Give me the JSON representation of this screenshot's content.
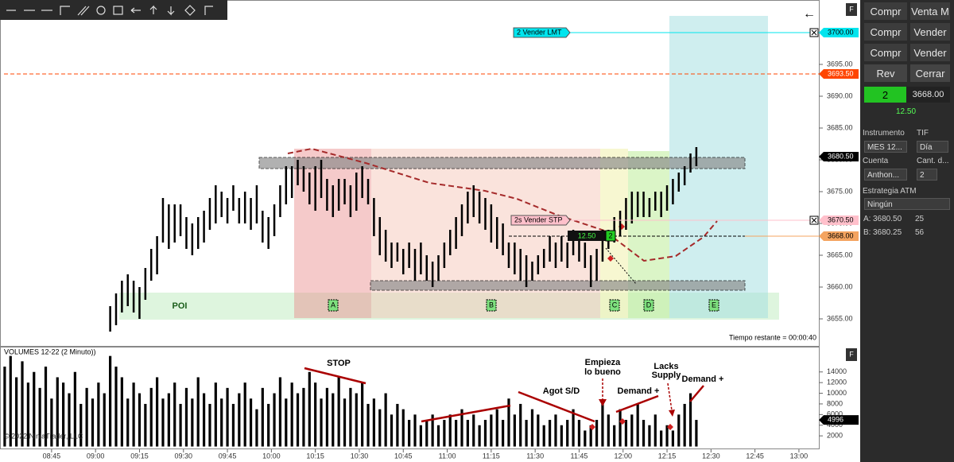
{
  "chart_data": [
    {
      "type": "ohlc",
      "color": "#000000",
      "xlim": [
        507.4,
        786.8
      ],
      "ylim": [
        3650.75,
        3705.125
      ],
      "yticks": [
        {
          "value": 3655,
          "label": "3655.00"
        },
        {
          "value": 3660,
          "label": "3660.00"
        },
        {
          "value": 3665,
          "label": "3665.00"
        },
        {
          "value": 3670,
          "label": "3670.00"
        },
        {
          "value": 3675,
          "label": "3675.00"
        },
        {
          "value": 3680,
          "label": "3680.00"
        },
        {
          "value": 3685,
          "label": "3685.00"
        },
        {
          "value": 3690,
          "label": "3690.00"
        },
        {
          "value": 3695,
          "label": "3695.00"
        }
      ],
      "x": [
        545,
        547,
        549,
        551,
        553,
        555,
        557,
        559,
        561,
        563,
        565,
        567,
        569,
        571,
        573,
        575,
        577,
        579,
        581,
        583,
        585,
        587,
        589,
        591,
        593,
        595,
        597,
        599,
        601,
        603,
        605,
        607,
        609,
        611,
        613,
        615,
        617,
        619,
        621,
        623,
        625,
        627,
        629,
        631,
        633,
        635,
        637,
        639,
        641,
        643,
        645,
        647,
        649,
        651,
        653,
        655,
        657,
        659,
        661,
        663,
        665,
        667,
        669,
        671,
        673,
        675,
        677,
        679,
        681,
        683,
        685,
        687,
        689,
        691,
        693,
        695,
        697,
        699,
        701,
        703,
        705,
        707,
        709,
        711,
        713,
        715,
        717,
        719,
        721,
        723,
        725,
        727,
        729,
        731,
        733,
        735,
        737,
        739,
        741,
        743,
        745
      ],
      "high": [
        3657,
        3659,
        3661,
        3662,
        3661,
        3660,
        3663,
        3666,
        3668,
        3674,
        3673,
        3673,
        3673,
        3671,
        3670,
        3671,
        3672,
        3674,
        3676,
        3675,
        3674,
        3676,
        3674,
        3675,
        3674,
        3676,
        3672,
        3671,
        3673,
        3676,
        3679,
        3679,
        3680,
        3679,
        3678,
        3679,
        3680,
        3677,
        3676,
        3677,
        3677,
        3676,
        3678,
        3679,
        3677,
        3674,
        3671,
        3669,
        3667,
        3667,
        3666,
        3667,
        3666,
        3667,
        3665,
        3664,
        3665,
        3667,
        3669,
        3671,
        3673,
        3675,
        3676,
        3675,
        3674,
        3673,
        3671,
        3670,
        3667,
        3667,
        3666,
        3665,
        3664,
        3665,
        3666,
        3668,
        3667,
        3668,
        3667,
        3669,
        3668,
        3667,
        3665,
        3666,
        3669,
        3669,
        3671,
        3672,
        3674,
        3675,
        3675,
        3675,
        3674,
        3675,
        3675,
        3676,
        3677,
        3678,
        3679,
        3681,
        3682
      ],
      "low": [
        3653,
        3654,
        3656,
        3657,
        3656,
        3655,
        3658,
        3661,
        3662,
        3667,
        3666,
        3667,
        3668,
        3666,
        3665,
        3666,
        3667,
        3669,
        3670,
        3671,
        3670,
        3672,
        3670,
        3670,
        3669,
        3670,
        3667,
        3666,
        3668,
        3671,
        3673,
        3674,
        3676,
        3675,
        3673,
        3672,
        3674,
        3672,
        3671,
        3672,
        3673,
        3671,
        3672,
        3674,
        3673,
        3668,
        3665,
        3664,
        3663,
        3664,
        3662,
        3663,
        3661,
        3662,
        3661,
        3660,
        3661,
        3663,
        3665,
        3666,
        3668,
        3670,
        3671,
        3670,
        3669,
        3667,
        3666,
        3665,
        3663,
        3662,
        3661,
        3660,
        3661,
        3662,
        3663,
        3664,
        3663,
        3664,
        3663,
        3665,
        3664,
        3663,
        3660,
        3661,
        3664,
        3666,
        3667,
        3668,
        3669,
        3670,
        3671,
        3671,
        3671,
        3672,
        3671,
        3672,
        3673,
        3675,
        3676,
        3678,
        3679
      ],
      "levels": [
        {
          "value": 3700,
          "label": "3700.00",
          "color": "#00e5ee"
        },
        {
          "value": 3693.5,
          "label": "3693.50",
          "color": "#ff4500"
        },
        {
          "value": 3680.5,
          "label": "3680.50",
          "color": "#000000"
        },
        {
          "value": 3670.5,
          "label": "3670.50",
          "color": "#ffc0cb"
        },
        {
          "value": 3668,
          "label": "3668.00",
          "color": "#f4a460"
        }
      ],
      "orders": [
        "2  Vender LMT",
        "2s  Vender STP"
      ],
      "position": [
        "12.50",
        "2"
      ],
      "poi": "POI",
      "zones": [
        "A",
        "B",
        "C",
        "D",
        "E"
      ],
      "timer": "Tiempo restante = 00:00:40"
    },
    {
      "type": "bar",
      "color": "#000000",
      "title": "VOLUMES 12-22 (2 Minuto))",
      "xlim": [
        507.4,
        786.8
      ],
      "ylim": [
        -518,
        18741
      ],
      "yticks": [
        2000,
        4000,
        6000,
        8000,
        10000,
        12000,
        14000
      ],
      "xticks": [
        {
          "value": 525,
          "label": "08:45"
        },
        {
          "value": 540,
          "label": "09:00"
        },
        {
          "value": 555,
          "label": "09:15"
        },
        {
          "value": 570,
          "label": "09:30"
        },
        {
          "value": 585,
          "label": "09:45"
        },
        {
          "value": 600,
          "label": "10:00"
        },
        {
          "value": 615,
          "label": "10:15"
        },
        {
          "value": 630,
          "label": "10:30"
        },
        {
          "value": 645,
          "label": "10:45"
        },
        {
          "value": 660,
          "label": "11:00"
        },
        {
          "value": 675,
          "label": "11:15"
        },
        {
          "value": 690,
          "label": "11:30"
        },
        {
          "value": 705,
          "label": "11:45"
        },
        {
          "value": 720,
          "label": "12:00"
        },
        {
          "value": 735,
          "label": "12:15"
        },
        {
          "value": 750,
          "label": "12:30"
        },
        {
          "value": 765,
          "label": "12:45"
        },
        {
          "value": 780,
          "label": "13:00"
        }
      ],
      "x0": 509,
      "values": [
        15000,
        17000,
        13000,
        16000,
        12000,
        14000,
        11000,
        15000,
        9000,
        13000,
        12000,
        10000,
        14000,
        8000,
        11000,
        9000,
        12000,
        10000,
        17000,
        15000,
        13000,
        9000,
        12000,
        10000,
        8000,
        11000,
        13000,
        9000,
        10000,
        12000,
        8000,
        11000,
        9000,
        13000,
        10000,
        8000,
        12000,
        9000,
        11000,
        8000,
        10000,
        12000,
        9000,
        7000,
        11000,
        8000,
        10000,
        13000,
        9000,
        12000,
        10000,
        11000,
        14000,
        12000,
        9000,
        11000,
        10000,
        13000,
        9000,
        11000,
        10000,
        12000,
        8000,
        9000,
        7000,
        10000,
        6000,
        8000,
        7000,
        5000,
        6000,
        4000,
        5000,
        6000,
        4000,
        5000,
        6000,
        5000,
        7000,
        5000,
        6000,
        4000,
        5000,
        6000,
        7000,
        5000,
        9000,
        6000,
        8000,
        5000,
        7000,
        6000,
        4000,
        5000,
        6000,
        4000,
        5000,
        7000,
        5000,
        3000,
        4000,
        5000,
        8000,
        6000,
        4000,
        7000,
        5000,
        6000,
        8000,
        5000,
        4000,
        6000,
        3000,
        4000,
        3000,
        6000,
        8000,
        10000,
        4996
      ],
      "annotations": [
        "STOP",
        "Agot S/D",
        "Empieza",
        "lo bueno",
        "Demand +",
        "Lacks",
        "Supply",
        "Demand +"
      ],
      "copyright": "© 2022 NinjaTrader, LLC"
    }
  ],
  "panel": {
    "buttons": [
      "Compr",
      "Venta M",
      "Compr",
      "Vender",
      "Compr",
      "Vender",
      "Rev",
      "Cerrar"
    ],
    "qty": "2",
    "price": "3668.00",
    "pnl": "12.50",
    "labels": [
      "Instrumento",
      "TIF",
      "Cuenta",
      "Cant. d...",
      "Estrategia ATM"
    ],
    "selects": [
      "MES 12...",
      "Día",
      "Anthon...",
      "2",
      "Ningún"
    ],
    "quotes": [
      [
        "A:",
        "3680.50",
        "25"
      ],
      [
        "B:",
        "3680.25",
        "56"
      ]
    ],
    "f": "F"
  }
}
